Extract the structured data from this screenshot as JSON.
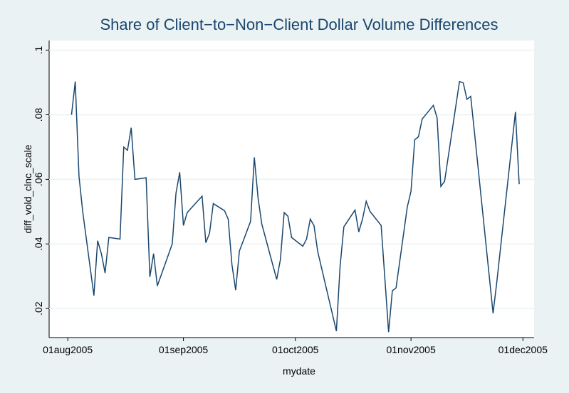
{
  "chart_data": {
    "type": "line",
    "title": "Share of Client−to−Non−Client Dollar Volume Differences",
    "x_label": "mydate",
    "y_label": "diff_vold_clnc_scale",
    "x": [
      "2005-08-02",
      "2005-08-03",
      "2005-08-04",
      "2005-08-05",
      "2005-08-08",
      "2005-08-09",
      "2005-08-10",
      "2005-08-11",
      "2005-08-12",
      "2005-08-15",
      "2005-08-16",
      "2005-08-17",
      "2005-08-18",
      "2005-08-19",
      "2005-08-22",
      "2005-08-23",
      "2005-08-24",
      "2005-08-25",
      "2005-08-29",
      "2005-08-30",
      "2005-08-31",
      "2005-09-01",
      "2005-09-02",
      "2005-09-06",
      "2005-09-07",
      "2005-09-08",
      "2005-09-09",
      "2005-09-12",
      "2005-09-13",
      "2005-09-14",
      "2005-09-15",
      "2005-09-16",
      "2005-09-19",
      "2005-09-20",
      "2005-09-21",
      "2005-09-22",
      "2005-09-26",
      "2005-09-27",
      "2005-09-28",
      "2005-09-29",
      "2005-09-30",
      "2005-10-03",
      "2005-10-04",
      "2005-10-05",
      "2005-10-06",
      "2005-10-07",
      "2005-10-12",
      "2005-10-13",
      "2005-10-14",
      "2005-10-17",
      "2005-10-18",
      "2005-10-19",
      "2005-10-20",
      "2005-10-21",
      "2005-10-24",
      "2005-10-26",
      "2005-10-27",
      "2005-10-28",
      "2005-10-31",
      "2005-11-01",
      "2005-11-02",
      "2005-11-03",
      "2005-11-04",
      "2005-11-07",
      "2005-11-08",
      "2005-11-09",
      "2005-11-10",
      "2005-11-14",
      "2005-11-15",
      "2005-11-16",
      "2005-11-17",
      "2005-11-18",
      "2005-11-23",
      "2005-11-24",
      "2005-11-29",
      "2005-11-30"
    ],
    "series": [
      {
        "color": "#1a476f",
        "values": [
          0.08,
          0.0903,
          0.061,
          0.05,
          0.024,
          0.041,
          0.037,
          0.031,
          0.042,
          0.0415,
          0.07,
          0.069,
          0.076,
          0.06,
          0.0605,
          0.0298,
          0.037,
          0.027,
          0.04,
          0.0557,
          0.0622,
          0.0457,
          0.0497,
          0.0548,
          0.0404,
          0.0433,
          0.0525,
          0.0503,
          0.0477,
          0.0336,
          0.0257,
          0.0378,
          0.047,
          0.0668,
          0.0543,
          0.0462,
          0.029,
          0.0352,
          0.0497,
          0.0486,
          0.042,
          0.0393,
          0.0415,
          0.0477,
          0.0457,
          0.0376,
          0.013,
          0.0332,
          0.0453,
          0.0505,
          0.0437,
          0.0477,
          0.0532,
          0.0501,
          0.0457,
          0.0127,
          0.0255,
          0.0264,
          0.0514,
          0.0563,
          0.0723,
          0.0732,
          0.0787,
          0.0829,
          0.079,
          0.0578,
          0.0594,
          0.0903,
          0.0899,
          0.0848,
          0.0857,
          0.0747,
          0.0185,
          0.0282,
          0.0809,
          0.0585
        ]
      }
    ],
    "xlim": [
      "2005-07-27",
      "2005-12-04"
    ],
    "xticks": [
      {
        "value": "2005-08-01",
        "label": "01aug2005"
      },
      {
        "value": "2005-09-01",
        "label": "01sep2005"
      },
      {
        "value": "2005-10-01",
        "label": "01oct2005"
      },
      {
        "value": "2005-11-01",
        "label": "01nov2005"
      },
      {
        "value": "2005-12-01",
        "label": "01dec2005"
      }
    ],
    "ylim": [
      0.011,
      0.103
    ],
    "yticks": [
      {
        "value": 0.02,
        "label": ".02"
      },
      {
        "value": 0.04,
        "label": ".04"
      },
      {
        "value": 0.06,
        "label": ".06"
      },
      {
        "value": 0.08,
        "label": ".08"
      },
      {
        "value": 0.1,
        "label": ".1"
      }
    ],
    "grid": true
  }
}
